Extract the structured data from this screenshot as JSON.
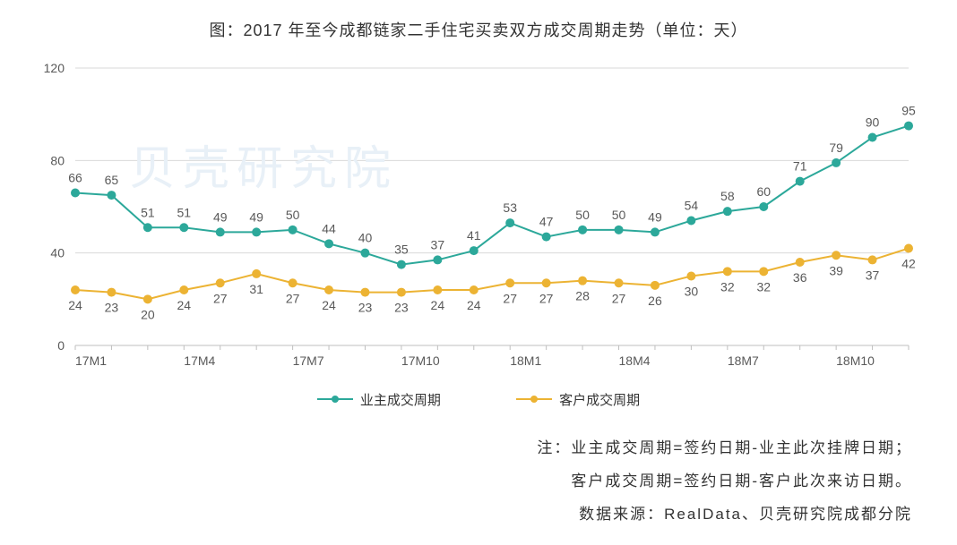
{
  "title": "图：2017 年至今成都链家二手住宅买卖双方成交周期走势（单位：天）",
  "chart": {
    "type": "line",
    "background_color": "#ffffff",
    "grid_color": "#d9d9d9",
    "axis_color": "#bfbfbf",
    "ylim": [
      0,
      120
    ],
    "ytick_step": 40,
    "yticks": [
      0,
      40,
      80,
      120
    ],
    "xlabels": [
      "17M1",
      "",
      "",
      "17M4",
      "",
      "",
      "17M7",
      "",
      "",
      "17M10",
      "",
      "",
      "18M1",
      "",
      "",
      "18M4",
      "",
      "",
      "18M7",
      "",
      "",
      "18M10",
      "",
      ""
    ],
    "xlabel_show": [
      "17M1",
      "17M4",
      "17M7",
      "17M10",
      "18M1",
      "18M4",
      "18M7",
      "18M10"
    ],
    "series": [
      {
        "name": "业主成交周期",
        "color": "#2ca89a",
        "marker": "circle",
        "marker_size": 5,
        "line_width": 2,
        "values": [
          66,
          65,
          51,
          51,
          49,
          49,
          50,
          44,
          40,
          35,
          37,
          41,
          53,
          47,
          50,
          50,
          49,
          54,
          58,
          60,
          71,
          79,
          90,
          95
        ]
      },
      {
        "name": "客户成交周期",
        "color": "#ecb333",
        "marker": "circle",
        "marker_size": 5,
        "line_width": 2,
        "values": [
          24,
          23,
          20,
          24,
          27,
          31,
          27,
          24,
          23,
          23,
          24,
          24,
          27,
          27,
          28,
          27,
          26,
          30,
          32,
          32,
          36,
          39,
          37,
          42
        ]
      }
    ],
    "label_fontsize": 14,
    "label_color": "#595959",
    "axis_fontsize": 14
  },
  "legend": {
    "items": [
      "业主成交周期",
      "客户成交周期"
    ]
  },
  "footnote": {
    "line1": "注：业主成交周期=签约日期-业主此次挂牌日期；",
    "line2": "客户成交周期=签约日期-客户此次来访日期。",
    "line3": "数据来源：RealData、贝壳研究院成都分院"
  },
  "watermark": "贝壳研究院"
}
